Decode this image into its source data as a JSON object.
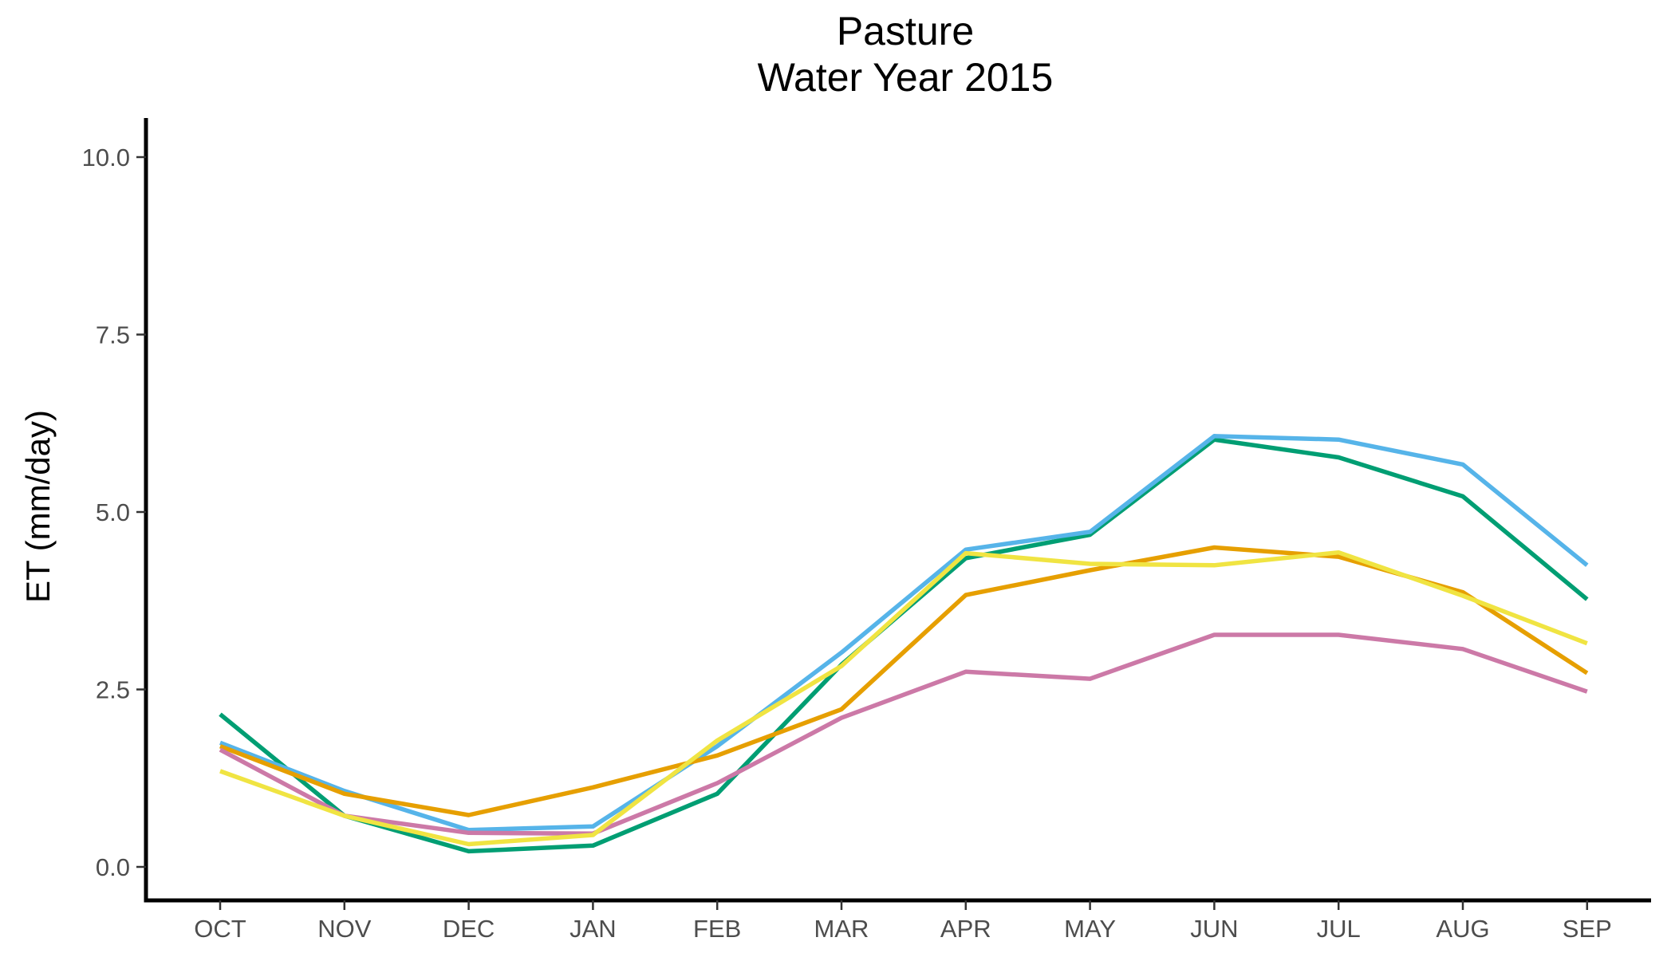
{
  "chart_data": {
    "type": "line",
    "title": "Pasture",
    "subtitle": "Water Year 2015",
    "xlabel": "",
    "ylabel": "ET (mm/day)",
    "categories": [
      "OCT",
      "NOV",
      "DEC",
      "JAN",
      "FEB",
      "MAR",
      "APR",
      "MAY",
      "JUN",
      "JUL",
      "AUG",
      "SEP"
    ],
    "ylim": [
      -0.5,
      10.5
    ],
    "yticks": [
      0.0,
      2.5,
      5.0,
      7.5,
      10.0
    ],
    "ytick_labels": [
      "0.0",
      "2.5",
      "5.0",
      "7.5",
      "10.0"
    ],
    "grid": false,
    "legend": "none",
    "series": [
      {
        "color": "#009E73",
        "values": [
          2.15,
          0.72,
          0.22,
          0.3,
          1.03,
          2.85,
          4.35,
          4.68,
          6.02,
          5.77,
          5.22,
          3.77
        ]
      },
      {
        "color": "#56B4E9",
        "values": [
          1.75,
          1.07,
          0.52,
          0.57,
          1.7,
          3.02,
          4.47,
          4.72,
          6.07,
          6.02,
          5.67,
          4.25
        ]
      },
      {
        "color": "#E69F00",
        "values": [
          1.7,
          1.03,
          0.73,
          1.12,
          1.57,
          2.22,
          3.83,
          4.18,
          4.5,
          4.37,
          3.87,
          2.73
        ]
      },
      {
        "color": "#CC79A7",
        "values": [
          1.65,
          0.72,
          0.48,
          0.47,
          1.18,
          2.1,
          2.75,
          2.65,
          3.27,
          3.27,
          3.07,
          2.47
        ]
      },
      {
        "color": "#F0E442",
        "values": [
          1.35,
          0.72,
          0.32,
          0.45,
          1.78,
          2.83,
          4.42,
          4.27,
          4.25,
          4.43,
          3.82,
          3.15
        ]
      }
    ]
  }
}
